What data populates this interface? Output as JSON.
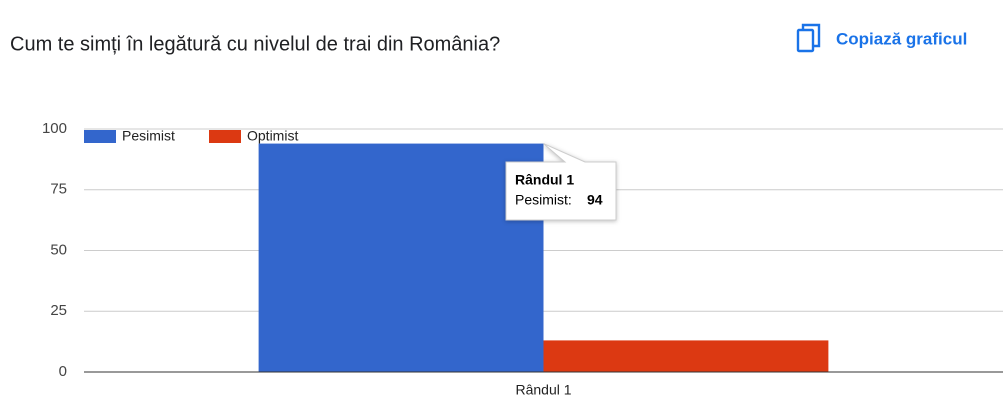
{
  "header": {
    "copy_button": "Copiază graficul"
  },
  "chart_data": {
    "type": "bar",
    "title": "Cum te simți în legătură cu nivelul de trai din România?",
    "categories": [
      "Rândul 1"
    ],
    "series": [
      {
        "name": "Pesimist",
        "color": "#3366cc",
        "values": [
          94
        ]
      },
      {
        "name": "Optimist",
        "color": "#dc3912",
        "values": [
          13
        ]
      }
    ],
    "ylim": [
      0,
      100
    ],
    "yticks": [
      0,
      25,
      50,
      75,
      100
    ],
    "grid": true,
    "legend": "top",
    "tooltip": {
      "label": "Pesimist:"
    }
  }
}
